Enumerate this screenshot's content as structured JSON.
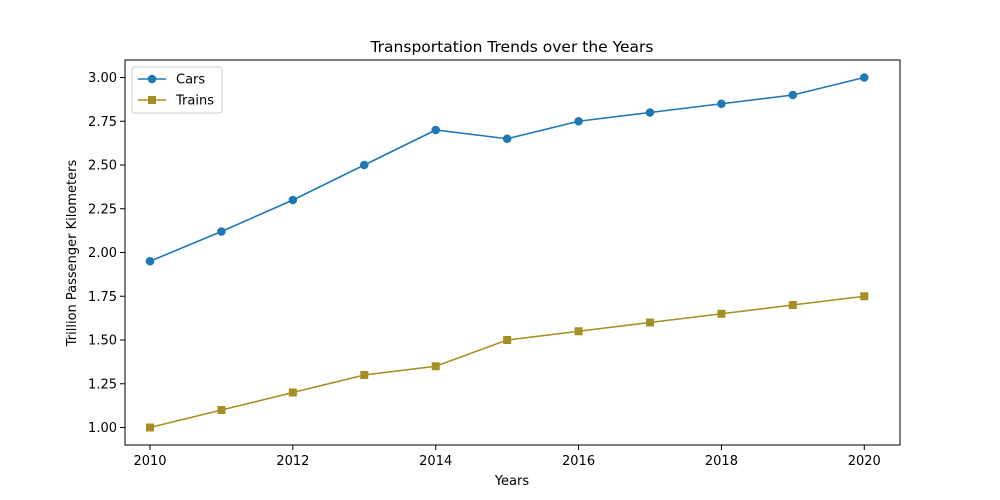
{
  "chart_data": {
    "type": "line",
    "title": "Transportation Trends over the Years",
    "xlabel": "Years",
    "ylabel": "Trillion Passenger Kilometers",
    "x": [
      2010,
      2011,
      2012,
      2013,
      2014,
      2015,
      2016,
      2017,
      2018,
      2019,
      2020
    ],
    "xlim": [
      2009.65,
      2020.5
    ],
    "ylim": [
      0.9,
      3.1
    ],
    "xticks": [
      2010,
      2012,
      2014,
      2016,
      2018,
      2020
    ],
    "yticks": [
      "1.00",
      "1.25",
      "1.50",
      "1.75",
      "2.00",
      "2.25",
      "2.50",
      "2.75",
      "3.00"
    ],
    "grid": false,
    "legend_position": "top-left",
    "series": [
      {
        "name": "Cars",
        "values": [
          1.95,
          2.12,
          2.3,
          2.5,
          2.7,
          2.65,
          2.75,
          2.8,
          2.85,
          2.9,
          3.0
        ],
        "color": "#1f77b4",
        "marker": "circle"
      },
      {
        "name": "Trains",
        "values": [
          1.0,
          1.1,
          1.2,
          1.3,
          1.35,
          1.5,
          1.55,
          1.6,
          1.65,
          1.7,
          1.75
        ],
        "color": "#a68f22",
        "marker": "square"
      }
    ]
  }
}
